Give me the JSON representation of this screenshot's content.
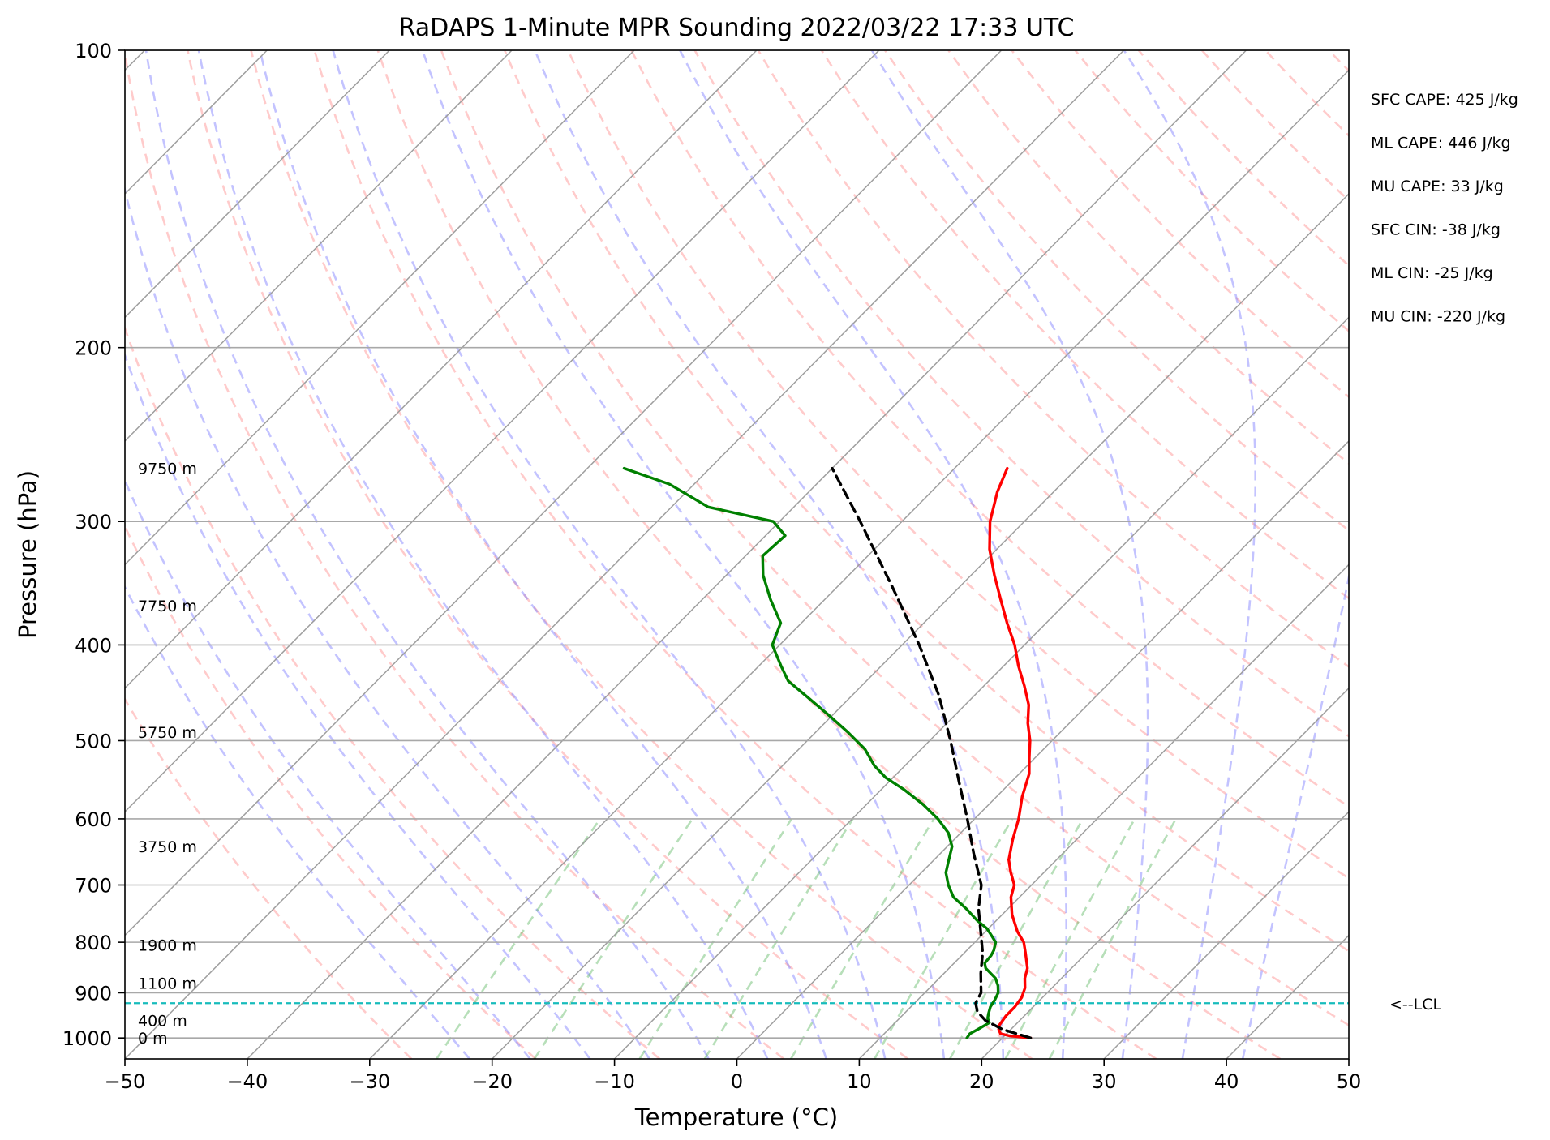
{
  "chart_data": {
    "type": "line",
    "title": "RaDAPS 1-Minute MPR Sounding 2022/03/22 17:33 UTC",
    "xlabel": "Temperature (°C)",
    "ylabel": "Pressure (hPa)",
    "xlim": [
      -50,
      50
    ],
    "ylim": [
      1050,
      100
    ],
    "y_scale": "log",
    "x_ticks": [
      "−50",
      "−40",
      "−30",
      "−20",
      "−10",
      "0",
      "10",
      "20",
      "30",
      "40",
      "50"
    ],
    "x_tick_values": [
      -50,
      -40,
      -30,
      -20,
      -10,
      0,
      10,
      20,
      30,
      40,
      50
    ],
    "y_ticks": [
      "100",
      "200",
      "300",
      "400",
      "500",
      "600",
      "700",
      "800",
      "900",
      "1000"
    ],
    "y_tick_values": [
      100,
      200,
      300,
      400,
      500,
      600,
      700,
      800,
      900,
      1000
    ],
    "grid": true,
    "diagram_type": "skew-T log-P",
    "height_labels": [
      {
        "text": "9750 m",
        "pressure": 265
      },
      {
        "text": "7750 m",
        "pressure": 365
      },
      {
        "text": "5750 m",
        "pressure": 490
      },
      {
        "text": "3750 m",
        "pressure": 640
      },
      {
        "text": "1900 m",
        "pressure": 805
      },
      {
        "text": "1100 m",
        "pressure": 880
      },
      {
        "text": "400 m",
        "pressure": 960
      },
      {
        "text": "0 m",
        "pressure": 1000
      }
    ],
    "indices": [
      "SFC CAPE: 425 J/kg",
      "ML CAPE: 446 J/kg",
      "MU CAPE: 33 J/kg",
      "SFC CIN: -38 J/kg",
      "ML CIN: -25 J/kg",
      "MU CIN: -220 J/kg"
    ],
    "lcl": {
      "label": "<--LCL",
      "pressure": 922
    },
    "series": [
      {
        "role": "temperature",
        "color": "#ff0000",
        "points": [
          [
            1000,
            22.3
          ],
          [
            995,
            20.4
          ],
          [
            990,
            19.5
          ],
          [
            980,
            19.0
          ],
          [
            970,
            18.7
          ],
          [
            950,
            18.5
          ],
          [
            930,
            18.5
          ],
          [
            910,
            18.3
          ],
          [
            890,
            17.8
          ],
          [
            870,
            17.0
          ],
          [
            850,
            16.4
          ],
          [
            820,
            15.0
          ],
          [
            800,
            14.0
          ],
          [
            780,
            12.6
          ],
          [
            750,
            10.8
          ],
          [
            720,
            9.3
          ],
          [
            700,
            8.6
          ],
          [
            680,
            7.3
          ],
          [
            660,
            6.1
          ],
          [
            630,
            4.8
          ],
          [
            600,
            3.6
          ],
          [
            570,
            2.1
          ],
          [
            540,
            0.8
          ],
          [
            520,
            -0.5
          ],
          [
            500,
            -1.8
          ],
          [
            480,
            -3.4
          ],
          [
            460,
            -4.8
          ],
          [
            440,
            -6.7
          ],
          [
            420,
            -8.8
          ],
          [
            400,
            -10.8
          ],
          [
            380,
            -13.2
          ],
          [
            360,
            -15.6
          ],
          [
            340,
            -18.1
          ],
          [
            320,
            -20.6
          ],
          [
            300,
            -22.8
          ],
          [
            280,
            -24.6
          ],
          [
            265,
            -25.7
          ]
        ]
      },
      {
        "role": "dewpoint",
        "color": "#008000",
        "points": [
          [
            1000,
            17.1
          ],
          [
            990,
            17.0
          ],
          [
            980,
            17.3
          ],
          [
            965,
            17.7
          ],
          [
            955,
            17.2
          ],
          [
            945,
            16.9
          ],
          [
            930,
            16.5
          ],
          [
            915,
            16.3
          ],
          [
            900,
            16.0
          ],
          [
            885,
            15.4
          ],
          [
            870,
            14.6
          ],
          [
            850,
            13.0
          ],
          [
            840,
            12.5
          ],
          [
            825,
            12.4
          ],
          [
            815,
            12.2
          ],
          [
            800,
            11.7
          ],
          [
            790,
            11.0
          ],
          [
            775,
            9.9
          ],
          [
            760,
            8.4
          ],
          [
            740,
            6.6
          ],
          [
            720,
            4.6
          ],
          [
            700,
            3.2
          ],
          [
            680,
            2.0
          ],
          [
            660,
            1.2
          ],
          [
            640,
            0.4
          ],
          [
            620,
            -1.0
          ],
          [
            600,
            -3.0
          ],
          [
            580,
            -5.4
          ],
          [
            560,
            -8.2
          ],
          [
            545,
            -10.6
          ],
          [
            530,
            -12.5
          ],
          [
            510,
            -14.6
          ],
          [
            490,
            -17.4
          ],
          [
            470,
            -20.5
          ],
          [
            450,
            -23.8
          ],
          [
            435,
            -26.4
          ],
          [
            420,
            -28.2
          ],
          [
            400,
            -30.6
          ],
          [
            380,
            -31.7
          ],
          [
            360,
            -34.4
          ],
          [
            340,
            -37.0
          ],
          [
            325,
            -38.6
          ],
          [
            310,
            -38.4
          ],
          [
            300,
            -40.5
          ],
          [
            290,
            -47.0
          ],
          [
            275,
            -52.0
          ],
          [
            265,
            -57.0
          ]
        ]
      },
      {
        "role": "parcel",
        "color": "#000000",
        "dashed": true,
        "points": [
          [
            1000,
            22.3
          ],
          [
            980,
            19.3
          ],
          [
            960,
            17.2
          ],
          [
            940,
            15.8
          ],
          [
            922,
            15.0
          ],
          [
            900,
            14.6
          ],
          [
            860,
            13.0
          ],
          [
            820,
            11.5
          ],
          [
            780,
            9.6
          ],
          [
            740,
            7.6
          ],
          [
            700,
            5.9
          ],
          [
            650,
            2.7
          ],
          [
            600,
            -0.6
          ],
          [
            550,
            -4.3
          ],
          [
            500,
            -8.3
          ],
          [
            450,
            -12.9
          ],
          [
            400,
            -18.6
          ],
          [
            350,
            -25.4
          ],
          [
            300,
            -33.4
          ],
          [
            265,
            -40.0
          ]
        ]
      }
    ]
  }
}
